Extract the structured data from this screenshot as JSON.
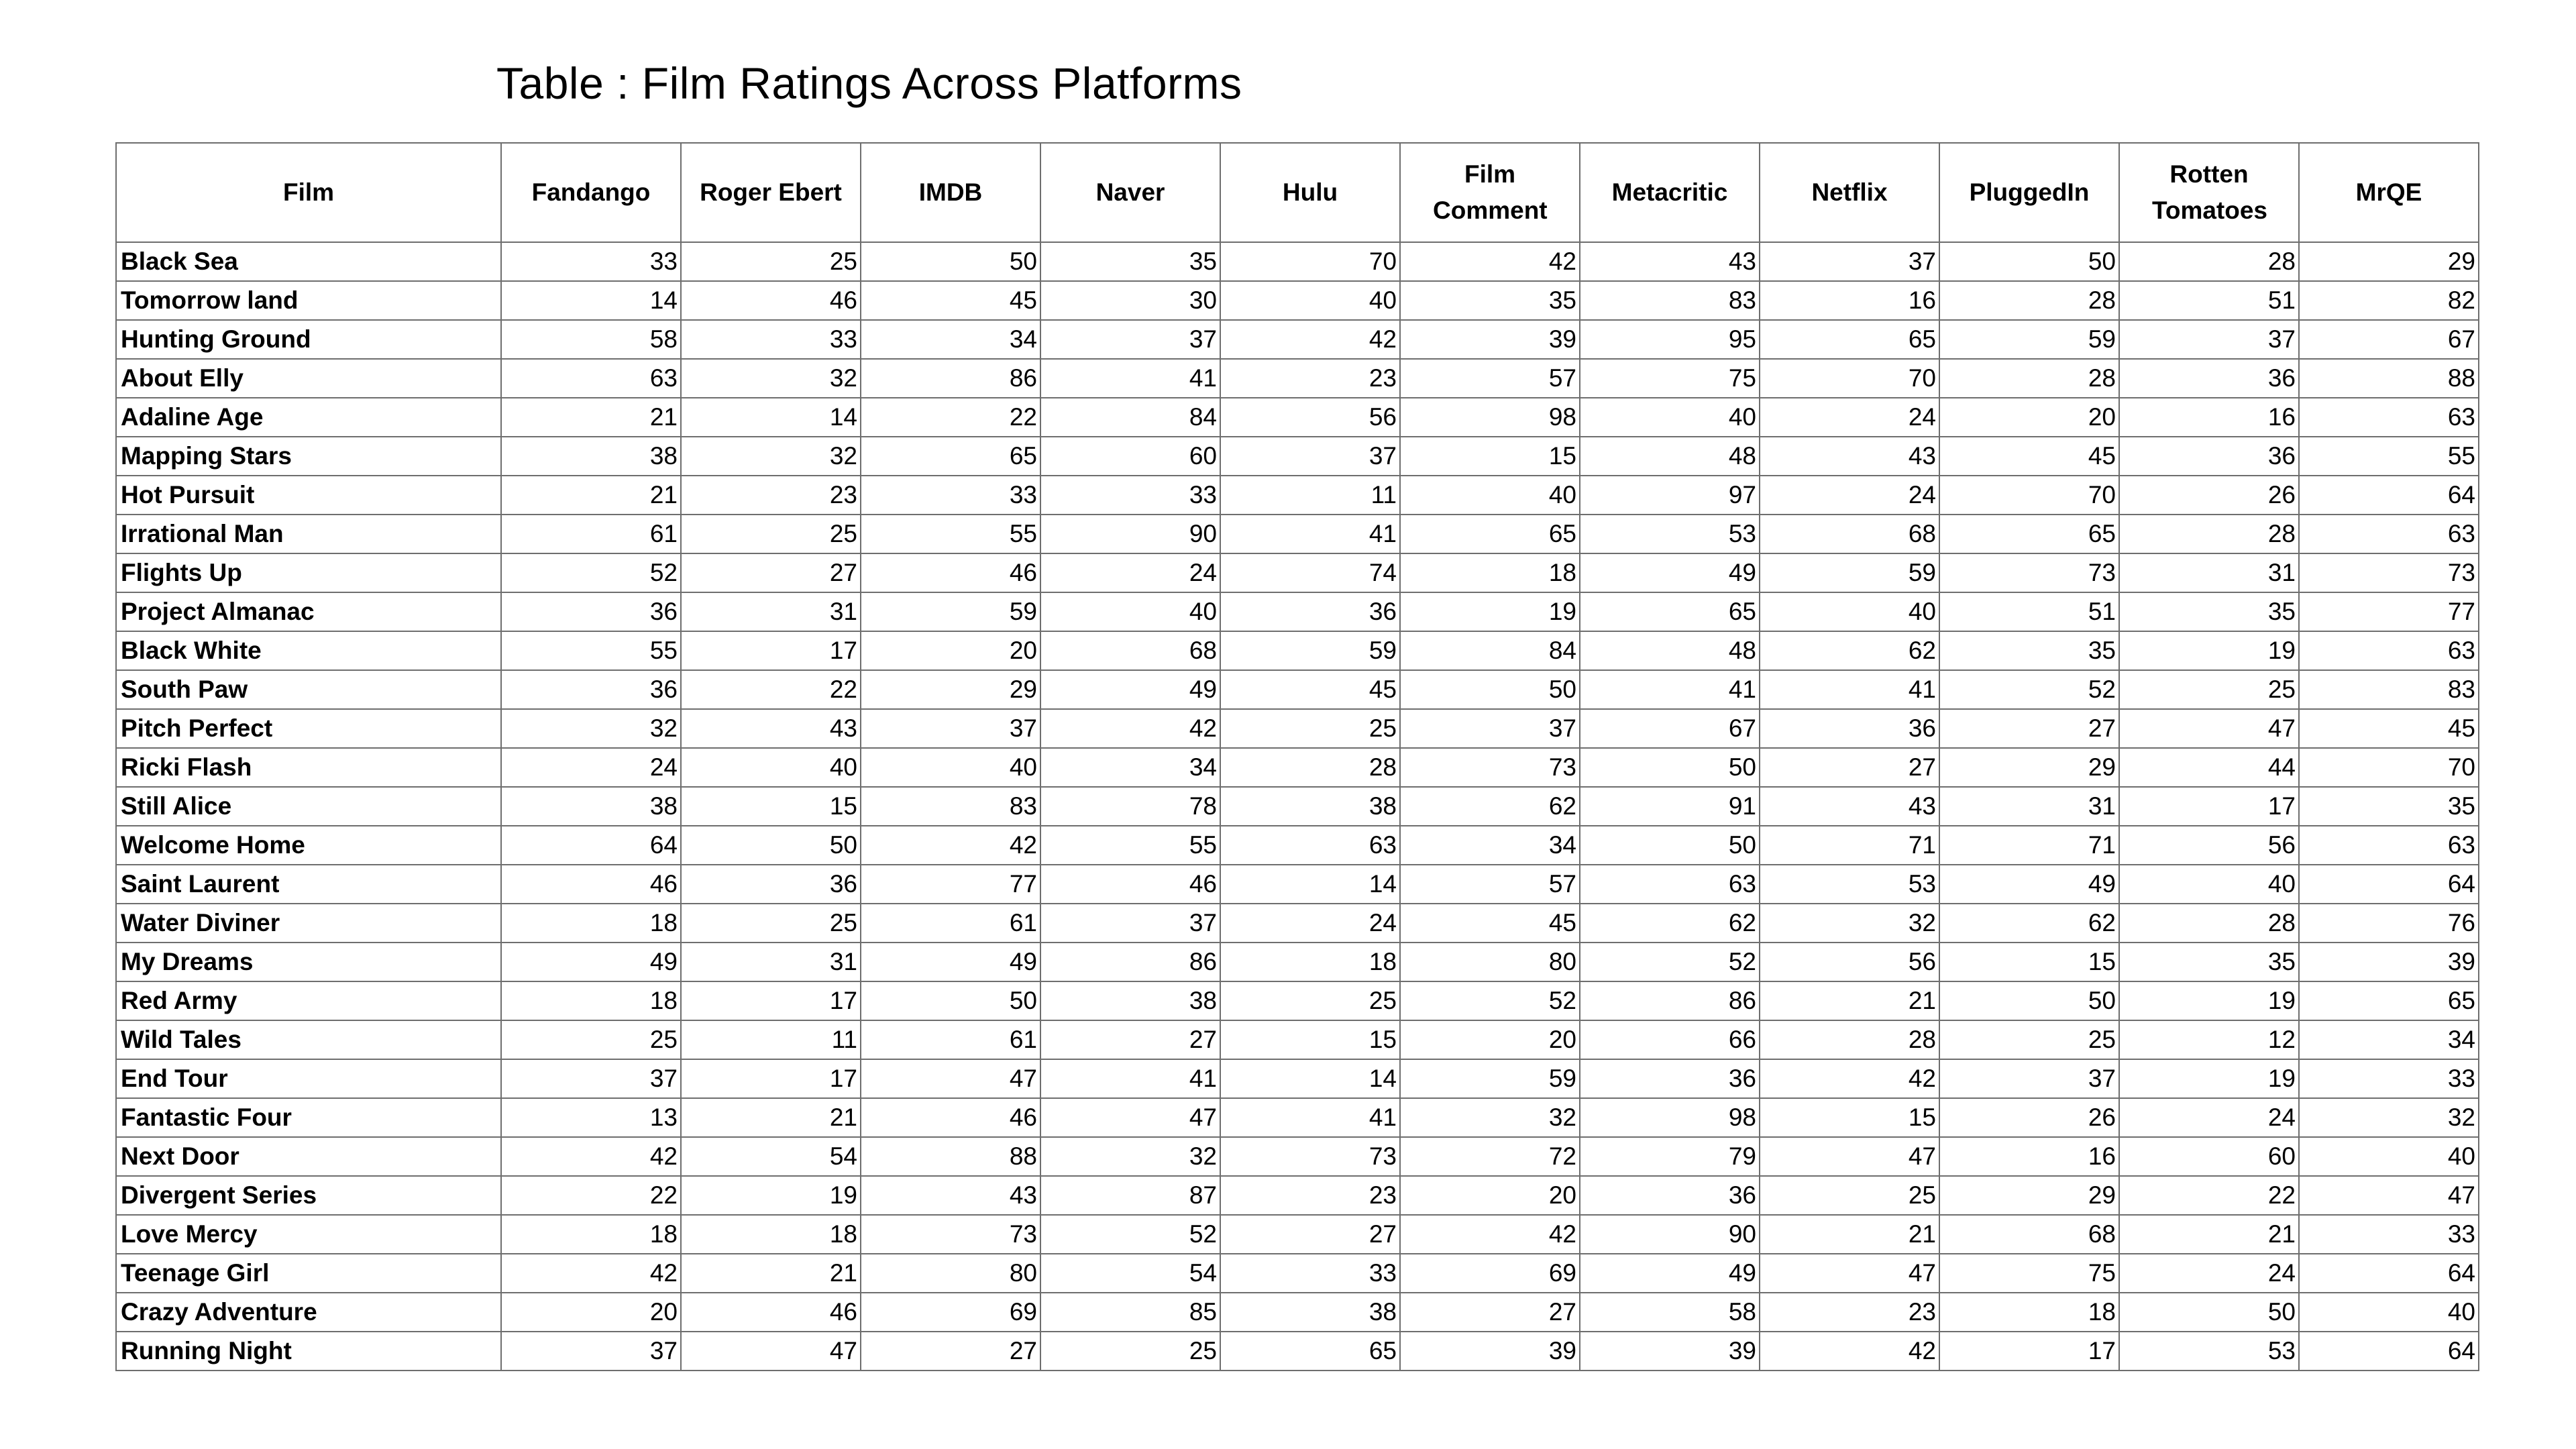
{
  "title": "Table : Film Ratings Across Platforms",
  "columns": [
    "Film",
    "Fandango",
    "Roger Ebert",
    "IMDB",
    "Naver",
    "Hulu",
    "Film Comment",
    "Metacritic",
    "Netflix",
    "PluggedIn",
    "Rotten Tomatoes",
    "MrQE"
  ],
  "rows": [
    [
      "Black Sea",
      33,
      25,
      50,
      35,
      70,
      42,
      43,
      37,
      50,
      28,
      29
    ],
    [
      "Tomorrow land",
      14,
      46,
      45,
      30,
      40,
      35,
      83,
      16,
      28,
      51,
      82
    ],
    [
      "Hunting Ground",
      58,
      33,
      34,
      37,
      42,
      39,
      95,
      65,
      59,
      37,
      67
    ],
    [
      "About Elly",
      63,
      32,
      86,
      41,
      23,
      57,
      75,
      70,
      28,
      36,
      88
    ],
    [
      "Adaline Age",
      21,
      14,
      22,
      84,
      56,
      98,
      40,
      24,
      20,
      16,
      63
    ],
    [
      "Mapping Stars",
      38,
      32,
      65,
      60,
      37,
      15,
      48,
      43,
      45,
      36,
      55
    ],
    [
      "Hot Pursuit",
      21,
      23,
      33,
      33,
      11,
      40,
      97,
      24,
      70,
      26,
      64
    ],
    [
      "Irrational Man",
      61,
      25,
      55,
      90,
      41,
      65,
      53,
      68,
      65,
      28,
      63
    ],
    [
      "Flights Up",
      52,
      27,
      46,
      24,
      74,
      18,
      49,
      59,
      73,
      31,
      73
    ],
    [
      "Project Almanac",
      36,
      31,
      59,
      40,
      36,
      19,
      65,
      40,
      51,
      35,
      77
    ],
    [
      "Black White",
      55,
      17,
      20,
      68,
      59,
      84,
      48,
      62,
      35,
      19,
      63
    ],
    [
      "South Paw",
      36,
      22,
      29,
      49,
      45,
      50,
      41,
      41,
      52,
      25,
      83
    ],
    [
      "Pitch Perfect",
      32,
      43,
      37,
      42,
      25,
      37,
      67,
      36,
      27,
      47,
      45
    ],
    [
      "Ricki Flash",
      24,
      40,
      40,
      34,
      28,
      73,
      50,
      27,
      29,
      44,
      70
    ],
    [
      "Still Alice",
      38,
      15,
      83,
      78,
      38,
      62,
      91,
      43,
      31,
      17,
      35
    ],
    [
      "Welcome Home",
      64,
      50,
      42,
      55,
      63,
      34,
      50,
      71,
      71,
      56,
      63
    ],
    [
      "Saint Laurent",
      46,
      36,
      77,
      46,
      14,
      57,
      63,
      53,
      49,
      40,
      64
    ],
    [
      "Water Diviner",
      18,
      25,
      61,
      37,
      24,
      45,
      62,
      32,
      62,
      28,
      76
    ],
    [
      "My Dreams",
      49,
      31,
      49,
      86,
      18,
      80,
      52,
      56,
      15,
      35,
      39
    ],
    [
      "Red Army",
      18,
      17,
      50,
      38,
      25,
      52,
      86,
      21,
      50,
      19,
      65
    ],
    [
      "Wild Tales",
      25,
      11,
      61,
      27,
      15,
      20,
      66,
      28,
      25,
      12,
      34
    ],
    [
      "End Tour",
      37,
      17,
      47,
      41,
      14,
      59,
      36,
      42,
      37,
      19,
      33
    ],
    [
      "Fantastic Four",
      13,
      21,
      46,
      47,
      41,
      32,
      98,
      15,
      26,
      24,
      32
    ],
    [
      "Next Door",
      42,
      54,
      88,
      32,
      73,
      72,
      79,
      47,
      16,
      60,
      40
    ],
    [
      "Divergent Series",
      22,
      19,
      43,
      87,
      23,
      20,
      36,
      25,
      29,
      22,
      47
    ],
    [
      "Love Mercy",
      18,
      18,
      73,
      52,
      27,
      42,
      90,
      21,
      68,
      21,
      33
    ],
    [
      "Teenage Girl",
      42,
      21,
      80,
      54,
      33,
      69,
      49,
      47,
      75,
      24,
      64
    ],
    [
      "Crazy Adventure",
      20,
      46,
      69,
      85,
      38,
      27,
      58,
      23,
      18,
      50,
      40
    ],
    [
      "Running Night",
      37,
      47,
      27,
      25,
      65,
      39,
      39,
      42,
      17,
      53,
      64
    ]
  ]
}
